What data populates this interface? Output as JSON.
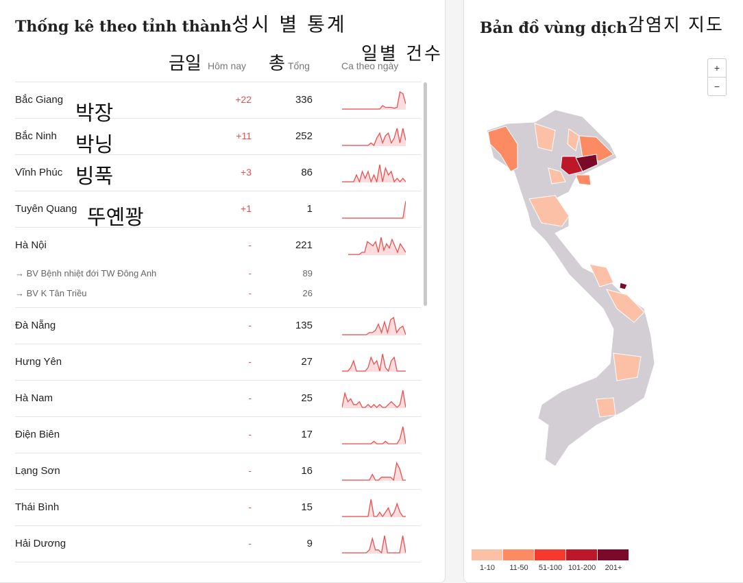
{
  "left_panel": {
    "title": "Thống kê theo tỉnh thành",
    "title_ko": "성시 별 통계",
    "columns": {
      "today": "Hôm nay",
      "today_ko": "금일",
      "total": "Tổng",
      "total_ko": "총",
      "daily": "Ca theo ngày",
      "daily_ko": "일별 건수"
    },
    "rows": [
      {
        "name": "Bắc Giang",
        "name_ko": "박장",
        "today": "+22",
        "total": "336",
        "spark": [
          0,
          0,
          0,
          0,
          0,
          0,
          0,
          0,
          0,
          0,
          0,
          0,
          0,
          0,
          2,
          1,
          1,
          1,
          0.5,
          1,
          10,
          9,
          3
        ]
      },
      {
        "name": "Bắc Ninh",
        "name_ko": "박닝",
        "today": "+11",
        "total": "252",
        "spark": [
          0,
          0,
          0,
          0,
          0,
          0,
          0,
          0,
          0,
          0,
          1,
          0,
          3,
          5,
          1,
          4,
          5,
          1,
          3,
          7,
          1,
          7,
          2
        ]
      },
      {
        "name": "Vĩnh Phúc",
        "name_ko": "빙푹",
        "today": "+3",
        "total": "86",
        "spark": [
          0,
          0,
          0,
          0,
          0,
          2,
          0,
          3,
          1,
          3,
          0,
          2,
          0,
          5,
          0,
          4,
          2,
          3,
          0,
          1,
          0,
          1,
          0
        ]
      },
      {
        "name": "Tuyên Quang",
        "name_ko": "뚜옌꽝",
        "today": "+1",
        "total": "1",
        "spark": [
          0,
          0,
          0,
          0,
          0,
          0,
          0,
          0,
          0,
          0,
          0,
          0,
          0,
          0,
          0,
          0,
          0,
          0,
          0,
          0,
          0,
          0,
          10
        ]
      },
      {
        "name": "Hà Nội",
        "today": "-",
        "total": "221",
        "spark": [
          0,
          0,
          0,
          0,
          0,
          1,
          1,
          6,
          5,
          4,
          6,
          1,
          8,
          2,
          5,
          3,
          7,
          4,
          1,
          5,
          3,
          1
        ]
      },
      {
        "name": "→ BV Bệnh nhiệt đới TW Đông Anh",
        "today": "-",
        "total": "89",
        "sub": true
      },
      {
        "name": "→ BV K Tân Triều",
        "today": "-",
        "total": "26",
        "sub": true
      },
      {
        "name": "Đà Nẵng",
        "today": "-",
        "total": "135",
        "spark": [
          0,
          0,
          0,
          0,
          0,
          0,
          0,
          0,
          0,
          1,
          1,
          2,
          5,
          1,
          6,
          1,
          7,
          8,
          1,
          3,
          4,
          0
        ]
      },
      {
        "name": "Hưng Yên",
        "today": "-",
        "total": "27",
        "spark": [
          0,
          0,
          0,
          1,
          3,
          0,
          0,
          0,
          0,
          1,
          4,
          2,
          3,
          0,
          5,
          1,
          0,
          3,
          4,
          0,
          0,
          0,
          0
        ]
      },
      {
        "name": "Hà Nam",
        "today": "-",
        "total": "25",
        "spark": [
          0,
          5,
          2,
          3,
          1,
          1,
          2,
          0,
          0,
          1,
          0,
          1,
          0,
          1,
          0,
          0,
          1,
          2,
          1,
          0,
          1,
          6,
          0
        ]
      },
      {
        "name": "Điện Biên",
        "today": "-",
        "total": "17",
        "spark": [
          0,
          0,
          0,
          0,
          0,
          0,
          0,
          0,
          0,
          0,
          0,
          1,
          0,
          0,
          0,
          1,
          0,
          0,
          0,
          0,
          2,
          7,
          0
        ]
      },
      {
        "name": "Lạng Sơn",
        "today": "-",
        "total": "16",
        "spark": [
          0,
          0,
          0,
          0,
          0,
          0,
          0,
          0,
          0,
          0,
          2,
          0,
          0,
          1,
          1,
          1,
          1,
          0,
          6,
          4,
          0,
          0
        ]
      },
      {
        "name": "Thái Bình",
        "today": "-",
        "total": "15",
        "spark": [
          0,
          0,
          0,
          0,
          0,
          0,
          0,
          0,
          0,
          0,
          4,
          0,
          0,
          1,
          0,
          1,
          2,
          0,
          1,
          3,
          1,
          0,
          0
        ]
      },
      {
        "name": "Hải Dương",
        "today": "-",
        "total": "9",
        "spark": [
          0,
          0,
          0,
          0,
          0,
          0,
          0,
          0,
          0,
          1,
          5,
          1,
          1,
          0,
          6,
          0,
          0,
          0,
          0,
          0,
          6,
          0
        ]
      }
    ]
  },
  "right_panel": {
    "title": "Bản đồ vùng dịch",
    "title_ko": "감염지 지도",
    "zoom_in": "+",
    "zoom_out": "−",
    "legend": [
      {
        "label": "1-10",
        "color": "#fcc0a6"
      },
      {
        "label": "11-50",
        "color": "#fc8a63"
      },
      {
        "label": "51-100",
        "color": "#f6392c"
      },
      {
        "label": "101-200",
        "color": "#bc1829"
      },
      {
        "label": "201+",
        "color": "#7a0a28"
      }
    ]
  },
  "colors": {
    "accent": "#e85050",
    "spark_fill": "#fcdcdc",
    "map_base": "#d2ced3"
  }
}
